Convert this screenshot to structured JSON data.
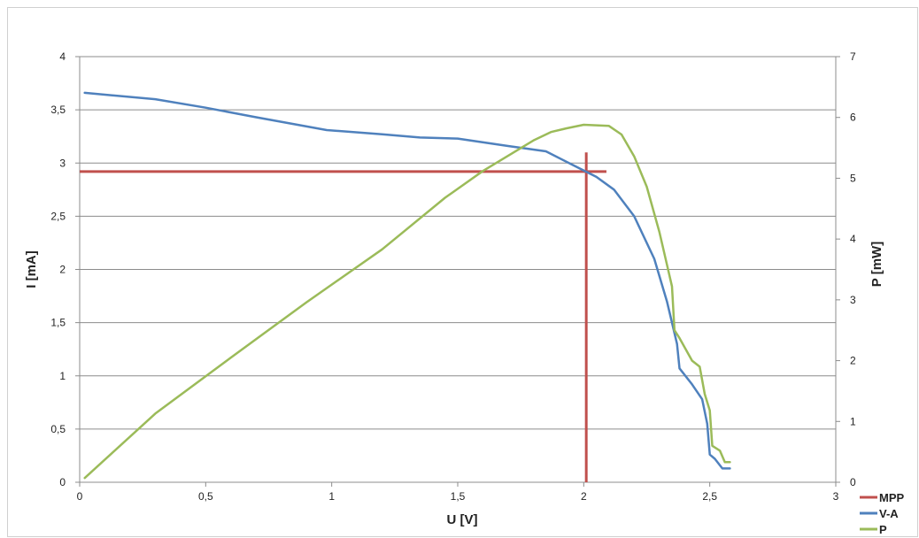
{
  "chart_data": {
    "type": "line",
    "x_axis": {
      "label": "U [V]",
      "range": [
        0,
        3
      ],
      "ticks": [
        0,
        0.5,
        1,
        1.5,
        2,
        2.5,
        3
      ],
      "tick_labels": [
        "0",
        "0,5",
        "1",
        "1,5",
        "2",
        "2,5",
        "3"
      ]
    },
    "y_axis_left": {
      "label": "I [mA]",
      "range": [
        0,
        4
      ],
      "ticks": [
        0,
        0.5,
        1,
        1.5,
        2,
        2.5,
        3,
        3.5,
        4
      ],
      "tick_labels": [
        "0",
        "0,5",
        "1",
        "1,5",
        "2",
        "2,5",
        "3",
        "3,5",
        "4"
      ]
    },
    "y_axis_right": {
      "label": "P [mW]",
      "range": [
        0,
        7
      ],
      "ticks": [
        0,
        1,
        2,
        3,
        4,
        5,
        6,
        7
      ],
      "tick_labels": [
        "0",
        "1",
        "2",
        "3",
        "4",
        "5",
        "6",
        "7"
      ]
    },
    "grid": "horizontal",
    "legend_position": "bottom-right",
    "series": [
      {
        "name": "MPP",
        "color": "#c0504d",
        "axis": "left",
        "segments": [
          [
            [
              0,
              2.92
            ],
            [
              2.09,
              2.92
            ]
          ],
          [
            [
              2.01,
              0
            ],
            [
              2.01,
              3.1
            ]
          ]
        ]
      },
      {
        "name": "V-A",
        "color": "#4f81bd",
        "axis": "left",
        "points": [
          [
            0.02,
            3.66
          ],
          [
            0.3,
            3.6
          ],
          [
            0.5,
            3.52
          ],
          [
            0.7,
            3.43
          ],
          [
            0.98,
            3.31
          ],
          [
            1.2,
            3.27
          ],
          [
            1.35,
            3.24
          ],
          [
            1.5,
            3.23
          ],
          [
            1.7,
            3.16
          ],
          [
            1.85,
            3.11
          ],
          [
            1.95,
            2.99
          ],
          [
            2.05,
            2.87
          ],
          [
            2.12,
            2.75
          ],
          [
            2.2,
            2.5
          ],
          [
            2.28,
            2.1
          ],
          [
            2.33,
            1.7
          ],
          [
            2.37,
            1.3
          ],
          [
            2.38,
            1.07
          ],
          [
            2.43,
            0.92
          ],
          [
            2.47,
            0.78
          ],
          [
            2.49,
            0.55
          ],
          [
            2.5,
            0.26
          ],
          [
            2.52,
            0.22
          ],
          [
            2.55,
            0.13
          ],
          [
            2.58,
            0.13
          ]
        ]
      },
      {
        "name": "P",
        "color": "#9bbb59",
        "axis": "right",
        "points": [
          [
            0.02,
            0.07
          ],
          [
            0.3,
            1.13
          ],
          [
            0.6,
            2.05
          ],
          [
            0.9,
            2.96
          ],
          [
            1.2,
            3.83
          ],
          [
            1.45,
            4.68
          ],
          [
            1.6,
            5.12
          ],
          [
            1.8,
            5.62
          ],
          [
            1.87,
            5.76
          ],
          [
            1.93,
            5.82
          ],
          [
            2,
            5.88
          ],
          [
            2.1,
            5.86
          ],
          [
            2.15,
            5.72
          ],
          [
            2.2,
            5.36
          ],
          [
            2.25,
            4.86
          ],
          [
            2.3,
            4.12
          ],
          [
            2.33,
            3.58
          ],
          [
            2.35,
            3.22
          ],
          [
            2.36,
            2.5
          ],
          [
            2.38,
            2.37
          ],
          [
            2.43,
            2.0
          ],
          [
            2.46,
            1.9
          ],
          [
            2.48,
            1.45
          ],
          [
            2.5,
            1.18
          ],
          [
            2.51,
            0.6
          ],
          [
            2.54,
            0.52
          ],
          [
            2.56,
            0.33
          ],
          [
            2.58,
            0.33
          ]
        ]
      }
    ]
  }
}
